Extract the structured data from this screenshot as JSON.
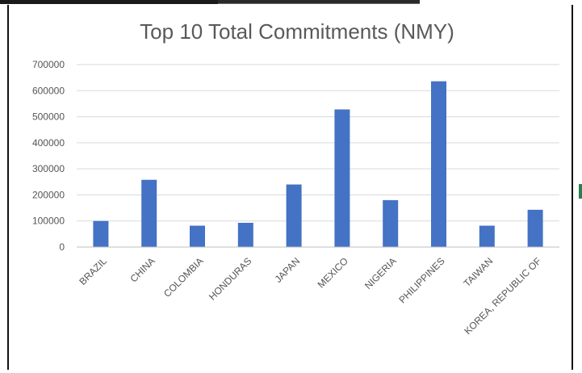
{
  "chart_data": {
    "type": "bar",
    "title": "Top 10 Total Commitments (NMY)",
    "xlabel": "",
    "ylabel": "",
    "categories": [
      "BRAZIL",
      "CHINA",
      "COLOMBIA",
      "HONDURAS",
      "JAPAN",
      "MEXICO",
      "NIGERIA",
      "PHILIPPINES",
      "TAIWAN",
      "KOREA, REPUBLIC OF"
    ],
    "values": [
      100000,
      258000,
      82000,
      93000,
      240000,
      528000,
      180000,
      636000,
      82000,
      143000
    ],
    "ylim": [
      0,
      700000
    ],
    "yticks": [
      "0",
      "100000",
      "200000",
      "300000",
      "400000",
      "500000",
      "600000",
      "700000"
    ],
    "grid": true,
    "legend": "none",
    "colors": {
      "bar": "#4472C4",
      "grid": "#D9D9D9",
      "text": "#595959"
    }
  }
}
